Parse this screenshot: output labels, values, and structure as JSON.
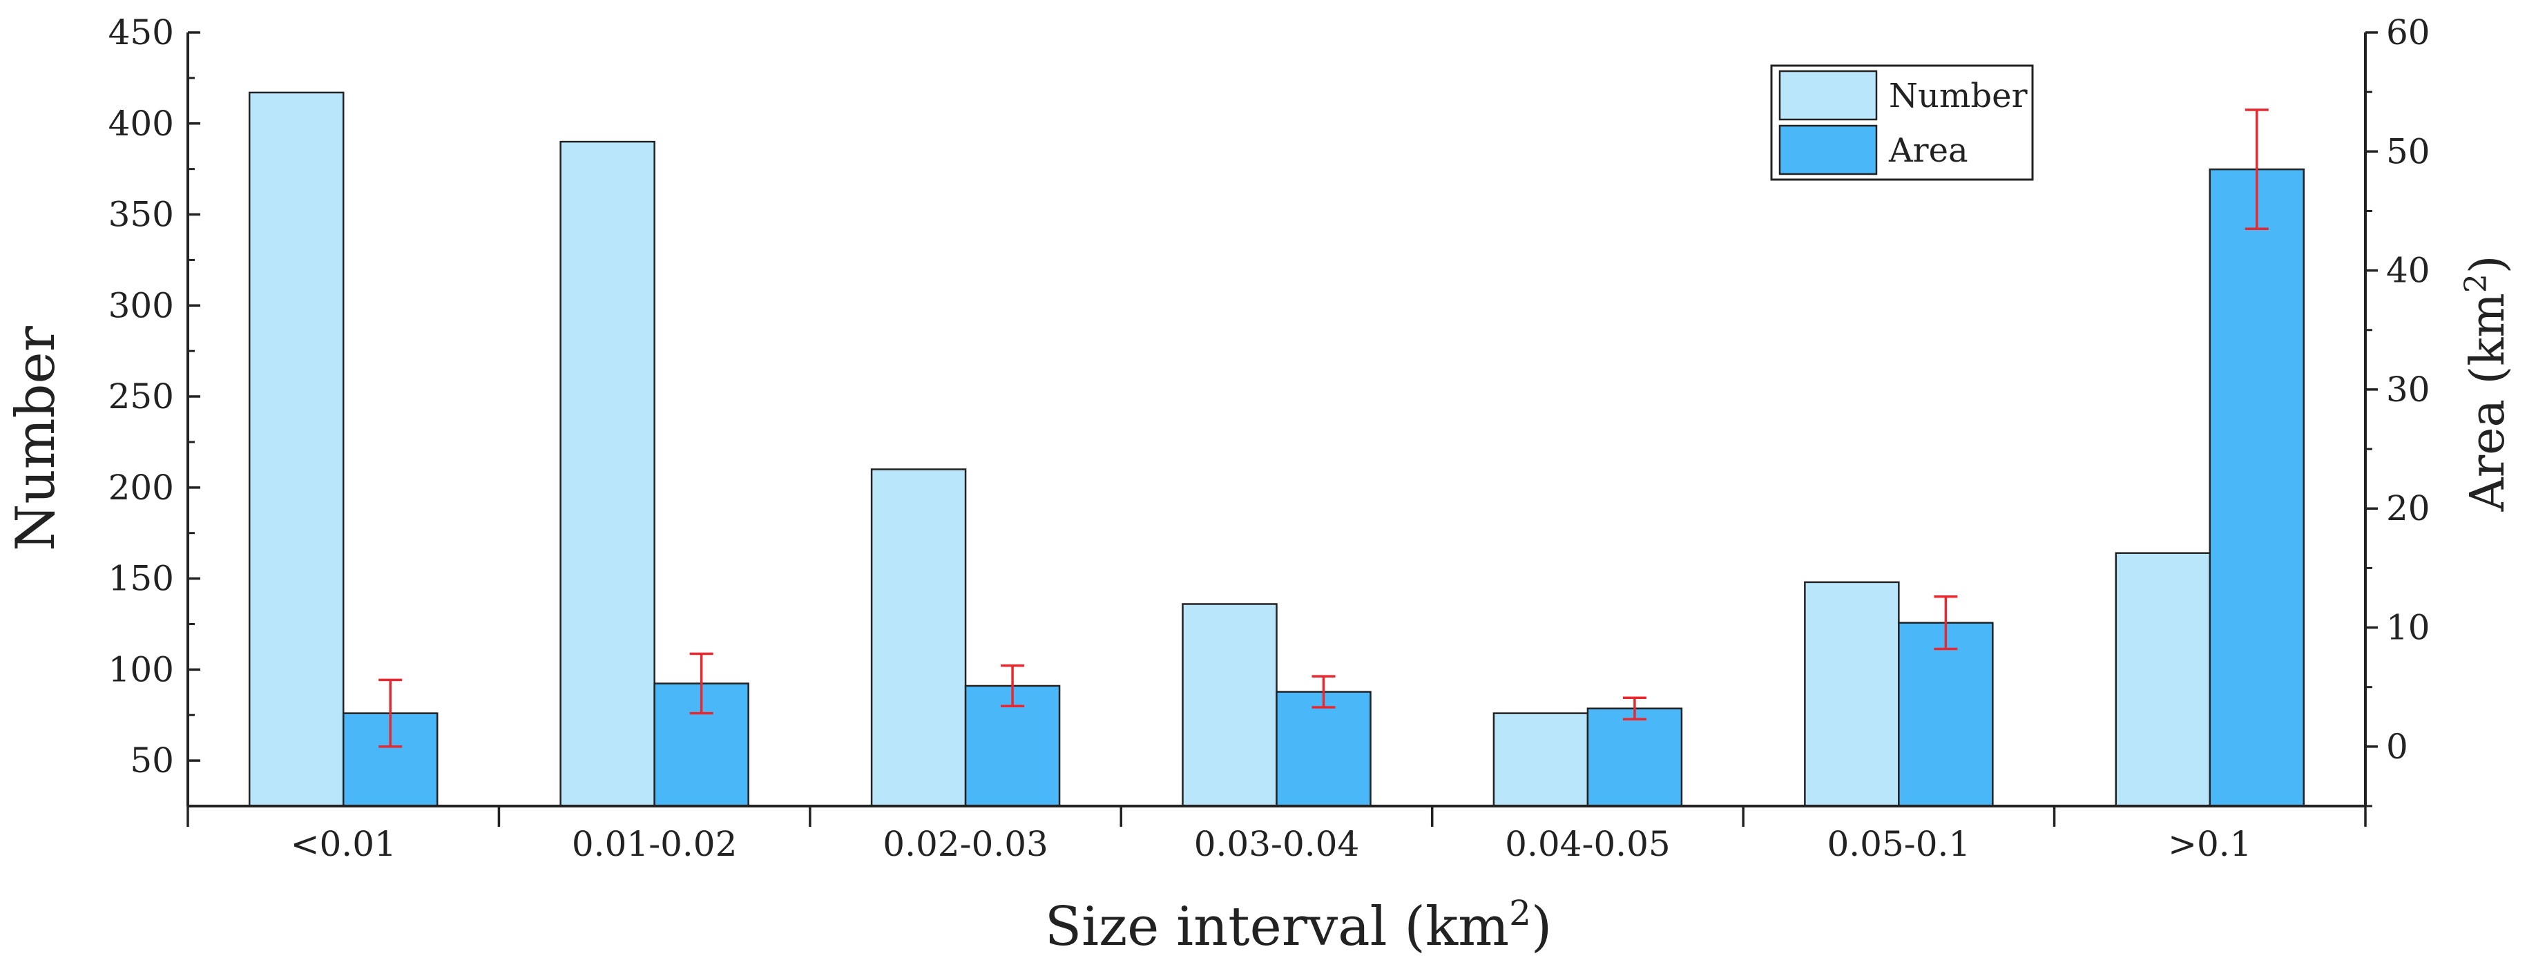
{
  "chart_data": {
    "type": "bar",
    "categories": [
      "<0.01",
      "0.01-0.02",
      "0.02-0.03",
      "0.03-0.04",
      "0.04-0.05",
      "0.05-0.1",
      ">0.1"
    ],
    "series": [
      {
        "name": "Number",
        "axis": "left",
        "color": "#b9e6fa",
        "values": [
          417,
          390,
          210,
          136,
          76,
          148,
          164
        ]
      },
      {
        "name": "Area",
        "axis": "right",
        "color": "#4ab8f8",
        "values": [
          2.8,
          5.3,
          5.1,
          4.6,
          3.2,
          10.4,
          48.5
        ],
        "error": [
          2.8,
          2.5,
          1.7,
          1.3,
          0.9,
          2.2,
          5.0
        ]
      }
    ],
    "xlabel": "Size interval (km",
    "xlabel_sup": "2",
    "xlabel_tail": ")",
    "ylabel_left": "Number",
    "ylabel_right": "Area (km",
    "ylabel_right_sup": "2",
    "ylabel_right_tail": ")",
    "ylim_left": [
      25,
      450
    ],
    "yticks_left": [
      50,
      100,
      150,
      200,
      250,
      300,
      350,
      400,
      450
    ],
    "ylim_right": [
      -5,
      60
    ],
    "yticks_right": [
      0,
      10,
      20,
      30,
      40,
      50,
      60
    ],
    "legend_position": "top-right",
    "error_color": "#e8282e"
  }
}
